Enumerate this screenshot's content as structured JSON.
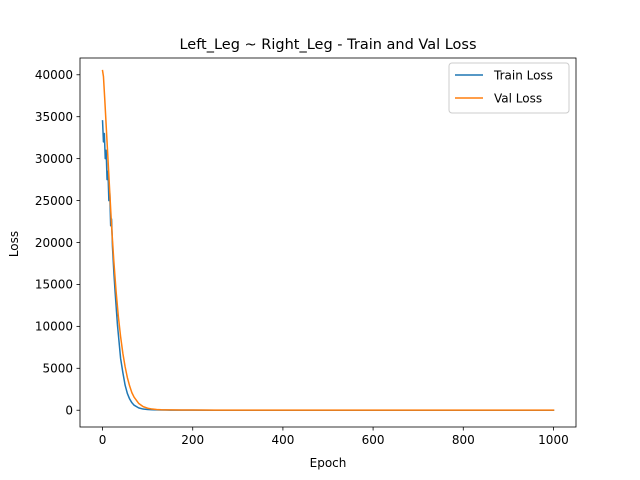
{
  "chart_data": {
    "type": "line",
    "title": "Left_Leg ~ Right_Leg - Train and Val Loss",
    "xlabel": "Epoch",
    "ylabel": "Loss",
    "xlim": [
      -50,
      1050
    ],
    "ylim": [
      -2000,
      42000
    ],
    "xticks": [
      0,
      200,
      400,
      600,
      800,
      1000
    ],
    "yticks": [
      0,
      5000,
      10000,
      15000,
      20000,
      25000,
      30000,
      35000,
      40000
    ],
    "grid": false,
    "legend_position": "top-right",
    "series": [
      {
        "name": "Train Loss",
        "color": "#1f77b4",
        "x": [
          0,
          2,
          4,
          6,
          8,
          10,
          12,
          14,
          16,
          18,
          20,
          22,
          25,
          28,
          30,
          33,
          36,
          40,
          45,
          50,
          55,
          60,
          65,
          70,
          80,
          90,
          100,
          110,
          120,
          130,
          140,
          150,
          175,
          200,
          250,
          300,
          400,
          500,
          600,
          700,
          800,
          900,
          1000
        ],
        "y": [
          34500,
          32000,
          33000,
          30000,
          31000,
          27500,
          28500,
          25000,
          26000,
          22000,
          22800,
          19500,
          16500,
          14000,
          12500,
          10200,
          8500,
          6200,
          4500,
          3000,
          2000,
          1350,
          900,
          600,
          280,
          140,
          80,
          50,
          35,
          25,
          20,
          15,
          10,
          8,
          5,
          5,
          5,
          5,
          5,
          5,
          5,
          5,
          5
        ]
      },
      {
        "name": "Val Loss",
        "color": "#ff7f0e",
        "x": [
          0,
          2,
          5,
          8,
          10,
          13,
          16,
          20,
          25,
          30,
          35,
          40,
          45,
          50,
          55,
          60,
          65,
          70,
          80,
          90,
          100,
          110,
          120,
          130,
          140,
          150,
          175,
          200,
          250,
          300,
          400,
          500,
          600,
          700,
          800,
          900,
          1000
        ],
        "y": [
          40500,
          39800,
          37000,
          34000,
          32000,
          29000,
          26000,
          22000,
          17800,
          14200,
          11200,
          8800,
          6800,
          5200,
          3900,
          2900,
          2100,
          1550,
          820,
          430,
          240,
          140,
          90,
          60,
          45,
          35,
          25,
          20,
          15,
          12,
          10,
          10,
          10,
          10,
          10,
          10,
          10
        ]
      }
    ]
  }
}
